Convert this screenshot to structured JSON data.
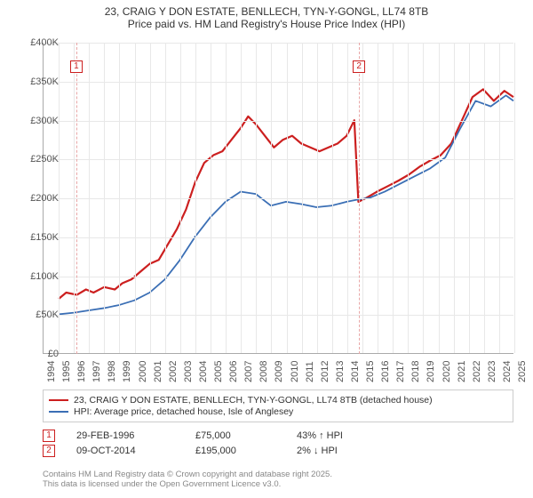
{
  "title": {
    "line1": "23, CRAIG Y DON ESTATE, BENLLECH, TYN-Y-GONGL, LL74 8TB",
    "line2": "Price paid vs. HM Land Registry's House Price Index (HPI)"
  },
  "chart": {
    "type": "line",
    "background_color": "#ffffff",
    "grid_color": "#e8e8e8",
    "axis_color": "#aaaaaa",
    "tick_font_size": 11,
    "ylim": [
      0,
      400000
    ],
    "ytick_step": 50000,
    "ytick_labels": [
      "£0",
      "£50K",
      "£100K",
      "£150K",
      "£200K",
      "£250K",
      "£300K",
      "£350K",
      "£400K"
    ],
    "xlim": [
      1994,
      2025
    ],
    "xtick_step": 1,
    "xtick_labels": [
      "1994",
      "1995",
      "1996",
      "1997",
      "1998",
      "1999",
      "2000",
      "2001",
      "2002",
      "2003",
      "2004",
      "2005",
      "2006",
      "2007",
      "2008",
      "2009",
      "2010",
      "2011",
      "2012",
      "2013",
      "2014",
      "2015",
      "2016",
      "2017",
      "2018",
      "2019",
      "2020",
      "2021",
      "2022",
      "2023",
      "2024",
      "2025"
    ],
    "series": [
      {
        "name": "price_paid",
        "label": "23, CRAIG Y DON ESTATE, BENLLECH, TYN-Y-GONGL, LL74 8TB (detached house)",
        "color": "#cc1f1f",
        "line_width": 2.2,
        "data": [
          [
            1995.0,
            70000
          ],
          [
            1995.5,
            78000
          ],
          [
            1996.2,
            75000
          ],
          [
            1996.8,
            82000
          ],
          [
            1997.3,
            78000
          ],
          [
            1998.0,
            85000
          ],
          [
            1998.7,
            82000
          ],
          [
            1999.2,
            90000
          ],
          [
            1999.8,
            95000
          ],
          [
            2000.4,
            105000
          ],
          [
            2001.0,
            115000
          ],
          [
            2001.6,
            120000
          ],
          [
            2002.2,
            140000
          ],
          [
            2002.8,
            160000
          ],
          [
            2003.4,
            185000
          ],
          [
            2004.0,
            220000
          ],
          [
            2004.6,
            245000
          ],
          [
            2005.2,
            255000
          ],
          [
            2005.8,
            260000
          ],
          [
            2006.4,
            275000
          ],
          [
            2007.0,
            290000
          ],
          [
            2007.5,
            305000
          ],
          [
            2008.0,
            295000
          ],
          [
            2008.6,
            280000
          ],
          [
            2009.2,
            265000
          ],
          [
            2009.8,
            275000
          ],
          [
            2010.4,
            280000
          ],
          [
            2011.0,
            270000
          ],
          [
            2011.6,
            265000
          ],
          [
            2012.2,
            260000
          ],
          [
            2012.8,
            265000
          ],
          [
            2013.4,
            270000
          ],
          [
            2014.0,
            280000
          ],
          [
            2014.5,
            300000
          ],
          [
            2014.77,
            195000
          ],
          [
            2015.3,
            200000
          ],
          [
            2016.0,
            208000
          ],
          [
            2016.7,
            215000
          ],
          [
            2017.4,
            222000
          ],
          [
            2018.1,
            230000
          ],
          [
            2018.8,
            240000
          ],
          [
            2019.5,
            248000
          ],
          [
            2020.2,
            255000
          ],
          [
            2020.9,
            270000
          ],
          [
            2021.6,
            300000
          ],
          [
            2022.3,
            330000
          ],
          [
            2023.0,
            340000
          ],
          [
            2023.7,
            325000
          ],
          [
            2024.4,
            338000
          ],
          [
            2025.0,
            330000
          ]
        ]
      },
      {
        "name": "hpi",
        "label": "HPI: Average price, detached house, Isle of Anglesey",
        "color": "#3b6fb5",
        "line_width": 1.8,
        "data": [
          [
            1995.0,
            50000
          ],
          [
            1996.0,
            52000
          ],
          [
            1997.0,
            55000
          ],
          [
            1998.0,
            58000
          ],
          [
            1999.0,
            62000
          ],
          [
            2000.0,
            68000
          ],
          [
            2001.0,
            78000
          ],
          [
            2002.0,
            95000
          ],
          [
            2003.0,
            120000
          ],
          [
            2004.0,
            150000
          ],
          [
            2005.0,
            175000
          ],
          [
            2006.0,
            195000
          ],
          [
            2007.0,
            208000
          ],
          [
            2008.0,
            205000
          ],
          [
            2009.0,
            190000
          ],
          [
            2010.0,
            195000
          ],
          [
            2011.0,
            192000
          ],
          [
            2012.0,
            188000
          ],
          [
            2013.0,
            190000
          ],
          [
            2014.0,
            195000
          ],
          [
            2014.77,
            198000
          ],
          [
            2015.5,
            200000
          ],
          [
            2016.5,
            208000
          ],
          [
            2017.5,
            218000
          ],
          [
            2018.5,
            228000
          ],
          [
            2019.5,
            238000
          ],
          [
            2020.5,
            252000
          ],
          [
            2021.5,
            290000
          ],
          [
            2022.5,
            325000
          ],
          [
            2023.5,
            318000
          ],
          [
            2024.5,
            332000
          ],
          [
            2025.0,
            325000
          ]
        ]
      }
    ],
    "markers": [
      {
        "id": "1",
        "x": 1996.16,
        "date": "29-FEB-1996",
        "price": "£75,000",
        "delta": "43% ↑ HPI",
        "color": "#cc1f1f"
      },
      {
        "id": "2",
        "x": 2014.77,
        "date": "09-OCT-2014",
        "price": "£195,000",
        "delta": "2% ↓ HPI",
        "color": "#cc1f1f"
      }
    ]
  },
  "footer": {
    "line1": "Contains HM Land Registry data © Crown copyright and database right 2025.",
    "line2": "This data is licensed under the Open Government Licence v3.0."
  }
}
